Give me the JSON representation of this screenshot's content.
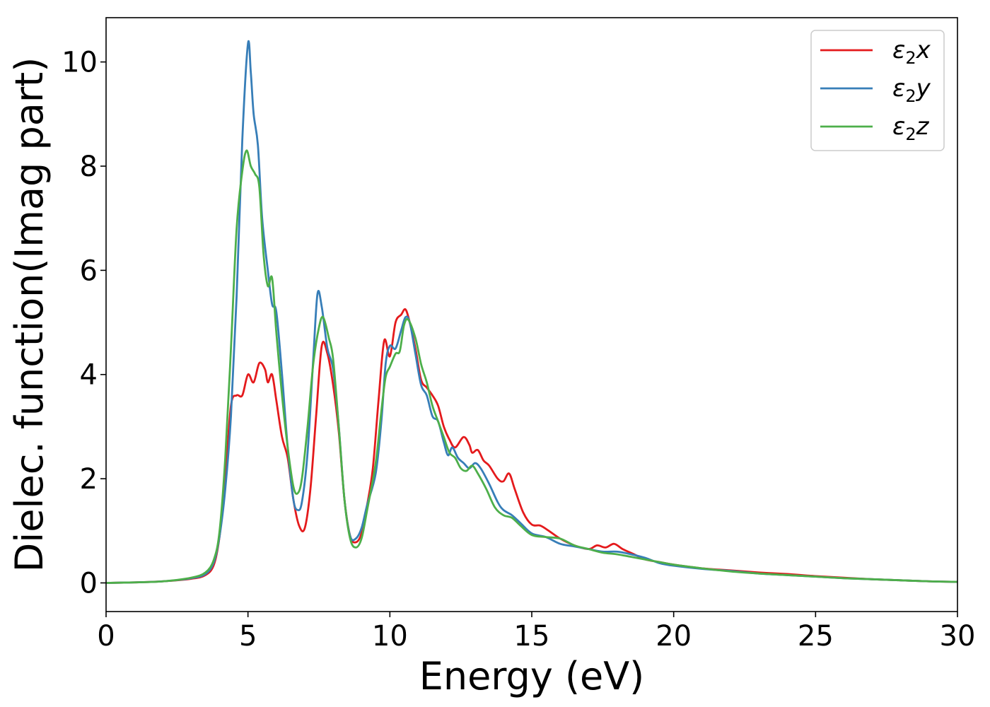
{
  "chart_data": {
    "type": "line",
    "title": "",
    "xlabel": "Energy (eV)",
    "ylabel": "Dielec. function(Imag part)",
    "xlim": [
      0,
      30
    ],
    "ylim": [
      -0.55,
      10.85
    ],
    "xticks": [
      0,
      5,
      10,
      15,
      20,
      25,
      30
    ],
    "yticks": [
      0,
      2,
      4,
      6,
      8,
      10
    ],
    "grid": false,
    "legend_position": "top-right",
    "series": [
      {
        "name": "ε2x",
        "legend_base": "ε",
        "legend_sub": "2",
        "legend_var": "x",
        "color": "#e41a1c",
        "points": [
          [
            0,
            0
          ],
          [
            1,
            0.01
          ],
          [
            2,
            0.03
          ],
          [
            3,
            0.08
          ],
          [
            3.5,
            0.15
          ],
          [
            3.8,
            0.35
          ],
          [
            4.0,
            0.9
          ],
          [
            4.2,
            2.0
          ],
          [
            4.4,
            3.4
          ],
          [
            4.6,
            3.6
          ],
          [
            4.8,
            3.6
          ],
          [
            5.0,
            4.0
          ],
          [
            5.2,
            3.85
          ],
          [
            5.4,
            4.22
          ],
          [
            5.6,
            4.1
          ],
          [
            5.7,
            3.85
          ],
          [
            5.85,
            4.0
          ],
          [
            6.0,
            3.5
          ],
          [
            6.2,
            2.8
          ],
          [
            6.4,
            2.4
          ],
          [
            6.6,
            1.6
          ],
          [
            6.8,
            1.1
          ],
          [
            7.0,
            1.05
          ],
          [
            7.2,
            1.8
          ],
          [
            7.4,
            3.2
          ],
          [
            7.6,
            4.55
          ],
          [
            7.8,
            4.4
          ],
          [
            8.0,
            3.8
          ],
          [
            8.2,
            2.9
          ],
          [
            8.4,
            1.6
          ],
          [
            8.6,
            0.9
          ],
          [
            8.8,
            0.78
          ],
          [
            9.0,
            0.95
          ],
          [
            9.2,
            1.5
          ],
          [
            9.4,
            2.2
          ],
          [
            9.6,
            3.5
          ],
          [
            9.8,
            4.65
          ],
          [
            10.0,
            4.35
          ],
          [
            10.2,
            5.0
          ],
          [
            10.4,
            5.15
          ],
          [
            10.55,
            5.25
          ],
          [
            10.7,
            5.0
          ],
          [
            10.9,
            4.5
          ],
          [
            11.1,
            3.9
          ],
          [
            11.3,
            3.75
          ],
          [
            11.5,
            3.6
          ],
          [
            11.7,
            3.4
          ],
          [
            11.9,
            3.0
          ],
          [
            12.1,
            2.75
          ],
          [
            12.3,
            2.6
          ],
          [
            12.6,
            2.8
          ],
          [
            12.8,
            2.65
          ],
          [
            12.9,
            2.5
          ],
          [
            13.1,
            2.55
          ],
          [
            13.3,
            2.35
          ],
          [
            13.5,
            2.25
          ],
          [
            13.8,
            2.0
          ],
          [
            14.0,
            1.95
          ],
          [
            14.2,
            2.1
          ],
          [
            14.4,
            1.8
          ],
          [
            14.7,
            1.35
          ],
          [
            15.0,
            1.12
          ],
          [
            15.3,
            1.1
          ],
          [
            15.6,
            1.0
          ],
          [
            16.0,
            0.85
          ],
          [
            16.5,
            0.72
          ],
          [
            17.0,
            0.65
          ],
          [
            17.3,
            0.72
          ],
          [
            17.6,
            0.68
          ],
          [
            17.9,
            0.75
          ],
          [
            18.2,
            0.65
          ],
          [
            18.6,
            0.55
          ],
          [
            19.0,
            0.45
          ],
          [
            19.5,
            0.4
          ],
          [
            20,
            0.35
          ],
          [
            21,
            0.28
          ],
          [
            22,
            0.24
          ],
          [
            23,
            0.2
          ],
          [
            24,
            0.17
          ],
          [
            25,
            0.13
          ],
          [
            26,
            0.1
          ],
          [
            27,
            0.07
          ],
          [
            28,
            0.05
          ],
          [
            29,
            0.03
          ],
          [
            30,
            0.02
          ]
        ]
      },
      {
        "name": "ε2y",
        "legend_base": "ε",
        "legend_sub": "2",
        "legend_var": "y",
        "color": "#377eb8",
        "points": [
          [
            0,
            0
          ],
          [
            1,
            0.01
          ],
          [
            2,
            0.03
          ],
          [
            3,
            0.09
          ],
          [
            3.5,
            0.17
          ],
          [
            3.8,
            0.4
          ],
          [
            4.0,
            0.9
          ],
          [
            4.2,
            1.8
          ],
          [
            4.4,
            3.2
          ],
          [
            4.6,
            5.5
          ],
          [
            4.8,
            8.5
          ],
          [
            5.0,
            10.35
          ],
          [
            5.1,
            9.8
          ],
          [
            5.2,
            9.0
          ],
          [
            5.35,
            8.4
          ],
          [
            5.5,
            7.0
          ],
          [
            5.7,
            6.0
          ],
          [
            5.85,
            5.35
          ],
          [
            6.0,
            5.2
          ],
          [
            6.2,
            4.0
          ],
          [
            6.4,
            2.6
          ],
          [
            6.6,
            1.6
          ],
          [
            6.75,
            1.4
          ],
          [
            6.9,
            1.55
          ],
          [
            7.1,
            2.5
          ],
          [
            7.3,
            4.3
          ],
          [
            7.45,
            5.55
          ],
          [
            7.6,
            5.3
          ],
          [
            7.8,
            4.5
          ],
          [
            8.0,
            4.1
          ],
          [
            8.2,
            3.0
          ],
          [
            8.4,
            1.6
          ],
          [
            8.6,
            0.9
          ],
          [
            8.8,
            0.85
          ],
          [
            9.0,
            1.05
          ],
          [
            9.2,
            1.5
          ],
          [
            9.5,
            2.1
          ],
          [
            9.7,
            3.1
          ],
          [
            9.85,
            4.2
          ],
          [
            10.0,
            4.55
          ],
          [
            10.2,
            4.5
          ],
          [
            10.4,
            4.85
          ],
          [
            10.55,
            5.1
          ],
          [
            10.7,
            5.0
          ],
          [
            10.9,
            4.4
          ],
          [
            11.1,
            3.8
          ],
          [
            11.3,
            3.6
          ],
          [
            11.5,
            3.2
          ],
          [
            11.7,
            3.1
          ],
          [
            11.9,
            2.7
          ],
          [
            12.05,
            2.45
          ],
          [
            12.2,
            2.6
          ],
          [
            12.4,
            2.4
          ],
          [
            12.6,
            2.3
          ],
          [
            12.8,
            2.2
          ],
          [
            13.0,
            2.3
          ],
          [
            13.2,
            2.2
          ],
          [
            13.5,
            1.9
          ],
          [
            13.8,
            1.55
          ],
          [
            14.0,
            1.4
          ],
          [
            14.3,
            1.3
          ],
          [
            14.6,
            1.15
          ],
          [
            15.0,
            0.95
          ],
          [
            15.5,
            0.88
          ],
          [
            16.0,
            0.75
          ],
          [
            16.5,
            0.7
          ],
          [
            17.0,
            0.65
          ],
          [
            17.5,
            0.6
          ],
          [
            18.0,
            0.6
          ],
          [
            18.5,
            0.55
          ],
          [
            19.0,
            0.48
          ],
          [
            19.5,
            0.38
          ],
          [
            20,
            0.33
          ],
          [
            21,
            0.27
          ],
          [
            22,
            0.23
          ],
          [
            23,
            0.18
          ],
          [
            24,
            0.15
          ],
          [
            25,
            0.12
          ],
          [
            26,
            0.09
          ],
          [
            27,
            0.07
          ],
          [
            28,
            0.05
          ],
          [
            29,
            0.03
          ],
          [
            30,
            0.02
          ]
        ]
      },
      {
        "name": "ε2z",
        "legend_base": "ε",
        "legend_sub": "2",
        "legend_var": "z",
        "color": "#4daf4a",
        "points": [
          [
            0,
            0
          ],
          [
            1,
            0.01
          ],
          [
            2,
            0.03
          ],
          [
            3,
            0.1
          ],
          [
            3.5,
            0.2
          ],
          [
            3.8,
            0.45
          ],
          [
            4.0,
            1.0
          ],
          [
            4.2,
            2.4
          ],
          [
            4.4,
            4.5
          ],
          [
            4.6,
            6.8
          ],
          [
            4.8,
            7.9
          ],
          [
            4.95,
            8.3
          ],
          [
            5.1,
            8.0
          ],
          [
            5.25,
            7.85
          ],
          [
            5.4,
            7.6
          ],
          [
            5.55,
            6.3
          ],
          [
            5.7,
            5.7
          ],
          [
            5.85,
            5.85
          ],
          [
            6.0,
            4.8
          ],
          [
            6.2,
            3.6
          ],
          [
            6.4,
            2.6
          ],
          [
            6.6,
            1.85
          ],
          [
            6.75,
            1.72
          ],
          [
            6.9,
            2.0
          ],
          [
            7.1,
            3.0
          ],
          [
            7.3,
            4.2
          ],
          [
            7.5,
            4.9
          ],
          [
            7.65,
            5.1
          ],
          [
            7.85,
            4.7
          ],
          [
            8.0,
            4.3
          ],
          [
            8.2,
            3.0
          ],
          [
            8.4,
            1.6
          ],
          [
            8.6,
            0.85
          ],
          [
            8.8,
            0.68
          ],
          [
            9.0,
            0.85
          ],
          [
            9.2,
            1.4
          ],
          [
            9.5,
            2.3
          ],
          [
            9.7,
            3.3
          ],
          [
            9.85,
            3.95
          ],
          [
            10.0,
            4.15
          ],
          [
            10.2,
            4.4
          ],
          [
            10.35,
            4.45
          ],
          [
            10.5,
            4.95
          ],
          [
            10.65,
            5.05
          ],
          [
            10.9,
            4.7
          ],
          [
            11.1,
            4.2
          ],
          [
            11.3,
            3.85
          ],
          [
            11.5,
            3.4
          ],
          [
            11.7,
            3.1
          ],
          [
            11.9,
            2.8
          ],
          [
            12.1,
            2.5
          ],
          [
            12.3,
            2.4
          ],
          [
            12.5,
            2.2
          ],
          [
            12.7,
            2.15
          ],
          [
            12.9,
            2.25
          ],
          [
            13.1,
            2.1
          ],
          [
            13.4,
            1.8
          ],
          [
            13.7,
            1.45
          ],
          [
            14.0,
            1.3
          ],
          [
            14.3,
            1.25
          ],
          [
            14.6,
            1.1
          ],
          [
            15.0,
            0.92
          ],
          [
            15.5,
            0.88
          ],
          [
            16.0,
            0.85
          ],
          [
            16.5,
            0.72
          ],
          [
            17.0,
            0.65
          ],
          [
            17.5,
            0.58
          ],
          [
            18.0,
            0.55
          ],
          [
            18.5,
            0.5
          ],
          [
            19.0,
            0.45
          ],
          [
            19.5,
            0.4
          ],
          [
            20,
            0.35
          ],
          [
            21,
            0.28
          ],
          [
            22,
            0.22
          ],
          [
            23,
            0.18
          ],
          [
            24,
            0.15
          ],
          [
            25,
            0.12
          ],
          [
            26,
            0.09
          ],
          [
            27,
            0.07
          ],
          [
            28,
            0.05
          ],
          [
            29,
            0.03
          ],
          [
            30,
            0.02
          ]
        ]
      }
    ]
  }
}
